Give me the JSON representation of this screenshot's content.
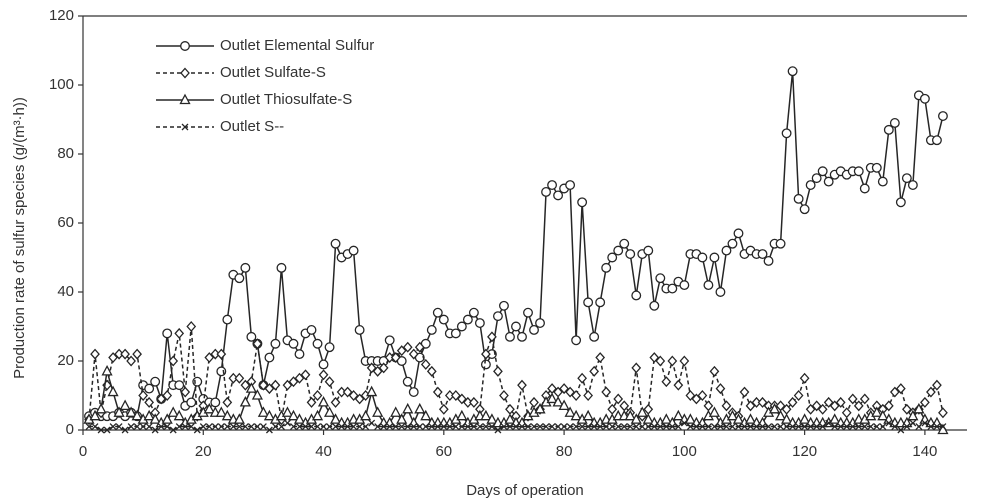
{
  "chart_data": {
    "type": "line",
    "x_label": "Days of operation",
    "y_label": "Production rate of sulfur species (g/(m³·h))",
    "xlim": [
      0,
      147
    ],
    "xticks": [
      0,
      20,
      40,
      60,
      80,
      100,
      120,
      140
    ],
    "ylim": [
      0,
      120
    ],
    "yticks": [
      0,
      20,
      40,
      60,
      80,
      100,
      120
    ],
    "grid": false,
    "legend": "top-left",
    "x": [
      1,
      2,
      3,
      4,
      5,
      6,
      7,
      8,
      9,
      10,
      11,
      12,
      13,
      14,
      15,
      16,
      17,
      18,
      19,
      20,
      21,
      22,
      23,
      24,
      25,
      26,
      27,
      28,
      29,
      30,
      31,
      32,
      33,
      34,
      35,
      36,
      37,
      38,
      39,
      40,
      41,
      42,
      43,
      44,
      45,
      46,
      47,
      48,
      49,
      50,
      51,
      52,
      53,
      54,
      55,
      56,
      57,
      58,
      59,
      60,
      61,
      62,
      63,
      64,
      65,
      66,
      67,
      68,
      69,
      70,
      71,
      72,
      73,
      74,
      75,
      76,
      77,
      78,
      79,
      80,
      81,
      82,
      83,
      84,
      85,
      86,
      87,
      88,
      89,
      90,
      91,
      92,
      93,
      94,
      95,
      96,
      97,
      98,
      99,
      100,
      101,
      102,
      103,
      104,
      105,
      106,
      107,
      108,
      109,
      110,
      111,
      112,
      113,
      114,
      115,
      116,
      117,
      118,
      119,
      120,
      121,
      122,
      123,
      124,
      125,
      126,
      127,
      128,
      129,
      130,
      131,
      132,
      133,
      134,
      135,
      136,
      137,
      138,
      139,
      140,
      141,
      142,
      143
    ],
    "series": [
      {
        "name": "Outlet Elemental Sulfur",
        "color": "#262626",
        "marker": "circle",
        "dash": "solid",
        "values": [
          4,
          5,
          4,
          4,
          4,
          5,
          4,
          5,
          4,
          13,
          12,
          14,
          9,
          28,
          13,
          13,
          7,
          8,
          14,
          9,
          8,
          8,
          17,
          32,
          45,
          44,
          47,
          27,
          25,
          13,
          21,
          25,
          47,
          26,
          25,
          22,
          28,
          29,
          25,
          19,
          24,
          54,
          50,
          51,
          52,
          29,
          20,
          20,
          20,
          20,
          26,
          21,
          20,
          14,
          11,
          21,
          25,
          29,
          34,
          32,
          28,
          28,
          30,
          32,
          34,
          31,
          19,
          22,
          33,
          36,
          27,
          30,
          27,
          34,
          29,
          31,
          69,
          71,
          68,
          70,
          71,
          26,
          66,
          37,
          27,
          37,
          47,
          50,
          52,
          54,
          51,
          39,
          51,
          52,
          36,
          44,
          41,
          41,
          43,
          42,
          51,
          51,
          50,
          42,
          50,
          40,
          52,
          54,
          57,
          51,
          52,
          51,
          51,
          49,
          54,
          54,
          86,
          104,
          67,
          64,
          71,
          73,
          75,
          72,
          74,
          75,
          74,
          75,
          75,
          70,
          76,
          76,
          72,
          87,
          89,
          66,
          73,
          71,
          97,
          96,
          84,
          84,
          91
        ]
      },
      {
        "name": "Outlet Sulfate-S",
        "color": "#262626",
        "marker": "diamond",
        "dash": "dashed",
        "values": [
          3,
          22,
          5,
          13,
          21,
          22,
          22,
          20,
          22,
          10,
          8,
          5,
          9,
          10,
          20,
          28,
          11,
          30,
          4,
          7,
          21,
          22,
          22,
          8,
          15,
          15,
          13,
          14,
          25,
          13,
          12,
          13,
          3,
          13,
          14,
          15,
          16,
          8,
          10,
          16,
          14,
          8,
          11,
          11,
          10,
          9,
          10,
          18,
          17,
          18,
          21,
          21,
          23,
          24,
          22,
          24,
          19,
          17,
          11,
          6,
          10,
          10,
          9,
          8,
          8,
          6,
          22,
          27,
          17,
          10,
          6,
          4,
          13,
          4,
          8,
          6,
          10,
          12,
          11,
          12,
          11,
          10,
          15,
          10,
          17,
          21,
          11,
          6,
          9,
          7,
          5,
          18,
          4,
          6,
          21,
          20,
          14,
          20,
          13,
          20,
          10,
          9,
          10,
          7,
          17,
          12,
          7,
          5,
          4,
          11,
          7,
          8,
          8,
          7,
          7,
          7,
          6,
          8,
          10,
          15,
          6,
          7,
          6,
          8,
          7,
          8,
          5,
          9,
          7,
          9,
          5,
          7,
          6,
          7,
          11,
          12,
          6,
          5,
          6,
          8,
          11,
          13,
          5
        ]
      },
      {
        "name": "Outlet Thiosulfate-S",
        "color": "#262626",
        "marker": "triangle",
        "dash": "solid",
        "values": [
          3,
          4,
          6,
          17,
          11,
          5,
          7,
          5,
          4,
          3,
          4,
          3,
          2,
          3,
          5,
          4,
          2,
          3,
          4,
          5,
          6,
          5,
          5,
          4,
          3,
          3,
          8,
          12,
          10,
          5,
          4,
          3,
          4,
          5,
          4,
          3,
          2,
          3,
          4,
          8,
          5,
          3,
          2,
          2,
          3,
          3,
          4,
          11,
          5,
          2,
          2,
          5,
          3,
          6,
          2,
          6,
          4,
          2,
          2,
          2,
          2,
          3,
          4,
          2,
          3,
          4,
          4,
          3,
          2,
          2,
          3,
          2,
          2,
          4,
          5,
          6,
          8,
          9,
          8,
          7,
          5,
          4,
          3,
          4,
          2,
          2,
          3,
          3,
          4,
          4,
          4,
          3,
          5,
          3,
          2,
          2,
          3,
          2,
          4,
          3,
          3,
          2,
          2,
          4,
          5,
          2,
          3,
          4,
          3,
          2,
          3,
          2,
          2,
          5,
          6,
          4,
          3,
          2,
          2,
          3,
          2,
          2,
          2,
          2,
          3,
          2,
          2,
          2,
          3,
          3,
          4,
          5,
          4,
          3,
          2,
          2,
          2,
          4,
          6,
          3,
          2,
          2,
          0
        ]
      },
      {
        "name": "Outlet S--",
        "color": "#262626",
        "marker": "x",
        "dash": "dashed",
        "values": [
          1,
          1,
          0,
          0,
          1,
          1,
          0,
          1,
          1,
          1,
          1,
          0,
          1,
          1,
          0,
          1,
          1,
          1,
          0,
          1,
          1,
          1,
          1,
          1,
          1,
          1,
          1,
          1,
          1,
          1,
          0,
          1,
          1,
          2,
          1,
          1,
          1,
          1,
          1,
          1,
          1,
          1,
          1,
          1,
          1,
          1,
          1,
          2,
          1,
          1,
          1,
          1,
          1,
          1,
          1,
          1,
          1,
          1,
          1,
          1,
          1,
          1,
          1,
          1,
          1,
          1,
          1,
          1,
          0,
          1,
          1,
          1,
          1,
          1,
          1,
          1,
          1,
          1,
          1,
          1,
          1,
          1,
          1,
          1,
          1,
          1,
          1,
          1,
          1,
          1,
          1,
          1,
          1,
          1,
          1,
          1,
          1,
          1,
          1,
          2,
          1,
          1,
          1,
          1,
          1,
          1,
          1,
          1,
          1,
          1,
          1,
          1,
          1,
          1,
          1,
          1,
          1,
          1,
          1,
          1,
          1,
          1,
          1,
          2,
          1,
          1,
          1,
          1,
          1,
          1,
          1,
          1,
          1,
          2,
          1,
          0,
          1,
          2,
          1,
          2,
          1,
          1,
          1
        ]
      }
    ]
  }
}
